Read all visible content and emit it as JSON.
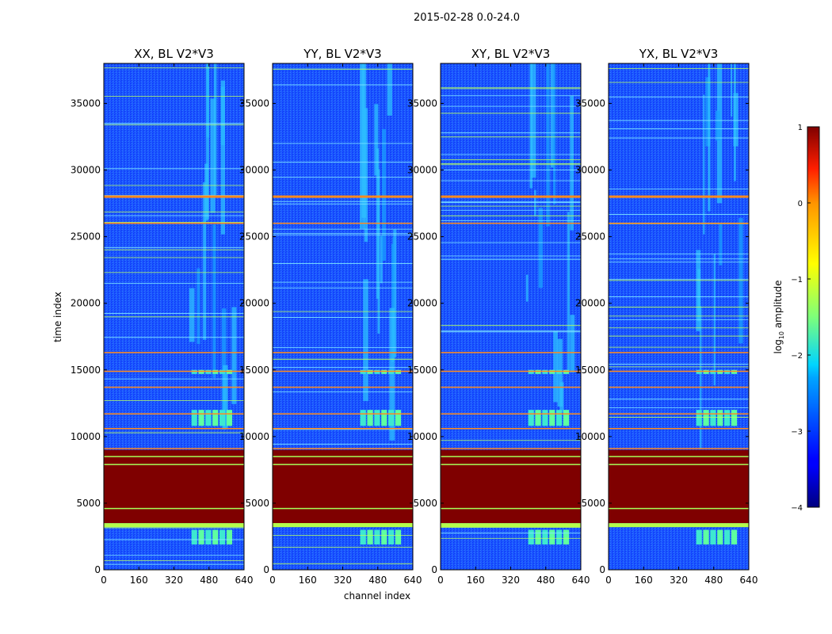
{
  "figure": {
    "suptitle": "2015-02-28 0.0-24.0"
  },
  "chart_data": {
    "type": "heatmap",
    "suptitle": "2015-02-28 0.0-24.0",
    "xlabel": "channel index",
    "ylabel": "time index",
    "xlim": [
      0,
      640
    ],
    "ylim": [
      0,
      38000
    ],
    "xticks": [
      "0",
      "160",
      "320",
      "480",
      "640"
    ],
    "yticks": [
      "0",
      "5000",
      "10000",
      "15000",
      "20000",
      "25000",
      "30000",
      "35000"
    ],
    "panels": [
      {
        "title": "XX, BL V2*V3"
      },
      {
        "title": "YY, BL V2*V3"
      },
      {
        "title": "XY, BL V2*V3"
      },
      {
        "title": "YX, BL V2*V3"
      }
    ],
    "colorbar": {
      "label_main": "log",
      "label_sub": "10",
      "label_rest": " amplitude",
      "range": [
        -4,
        1
      ],
      "ticks": [
        "1",
        "0",
        "−1",
        "−2",
        "−3",
        "−4"
      ],
      "colormap": "jet"
    },
    "flag_features": {
      "saturated_block_time_range": [
        3500,
        9000
      ],
      "bright_band_time_range": [
        3200,
        3500
      ],
      "rfi_channel_range": [
        390,
        600
      ],
      "orange_lines_time": [
        28000,
        26000,
        16300,
        14900,
        13700,
        11700,
        10600,
        9100
      ],
      "rfi_blocks_time": [
        [
          1900,
          3000
        ],
        [
          10800,
          12000
        ],
        [
          14700,
          15000
        ]
      ]
    }
  }
}
